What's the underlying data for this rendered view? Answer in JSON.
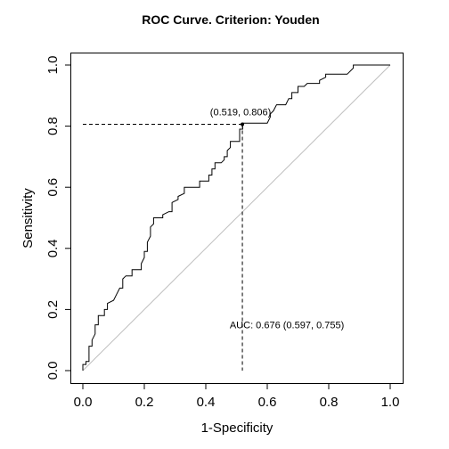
{
  "chart_data": {
    "type": "line",
    "title": "ROC Curve. Criterion: Youden",
    "xlabel": "1-Specificity",
    "ylabel": "Sensitivity",
    "xlim": [
      0,
      1
    ],
    "ylim": [
      0,
      1
    ],
    "x_ticks": [
      "0.0",
      "0.2",
      "0.4",
      "0.6",
      "0.8",
      "1.0"
    ],
    "y_ticks": [
      "0.0",
      "0.2",
      "0.4",
      "0.6",
      "0.8",
      "1.0"
    ],
    "grid": false,
    "legend": "none",
    "colors": {
      "curve": "#000000",
      "diagonal": "#bebebe",
      "reference_lines": "#000000",
      "box": "#000000"
    },
    "series": [
      {
        "values": [
          [
            0.0,
            0.0
          ],
          [
            0.0,
            0.02
          ],
          [
            0.01,
            0.02
          ],
          [
            0.01,
            0.03
          ],
          [
            0.02,
            0.03
          ],
          [
            0.02,
            0.08
          ],
          [
            0.03,
            0.08
          ],
          [
            0.03,
            0.1
          ],
          [
            0.04,
            0.12
          ],
          [
            0.04,
            0.15
          ],
          [
            0.05,
            0.15
          ],
          [
            0.05,
            0.18
          ],
          [
            0.07,
            0.18
          ],
          [
            0.07,
            0.2
          ],
          [
            0.08,
            0.2
          ],
          [
            0.08,
            0.22
          ],
          [
            0.1,
            0.23
          ],
          [
            0.11,
            0.25
          ],
          [
            0.12,
            0.27
          ],
          [
            0.13,
            0.27
          ],
          [
            0.13,
            0.3
          ],
          [
            0.14,
            0.31
          ],
          [
            0.16,
            0.31
          ],
          [
            0.16,
            0.33
          ],
          [
            0.19,
            0.33
          ],
          [
            0.19,
            0.35
          ],
          [
            0.2,
            0.37
          ],
          [
            0.2,
            0.39
          ],
          [
            0.21,
            0.39
          ],
          [
            0.21,
            0.42
          ],
          [
            0.22,
            0.44
          ],
          [
            0.22,
            0.47
          ],
          [
            0.23,
            0.48
          ],
          [
            0.23,
            0.5
          ],
          [
            0.26,
            0.5
          ],
          [
            0.26,
            0.51
          ],
          [
            0.28,
            0.52
          ],
          [
            0.29,
            0.52
          ],
          [
            0.29,
            0.55
          ],
          [
            0.31,
            0.56
          ],
          [
            0.31,
            0.57
          ],
          [
            0.33,
            0.58
          ],
          [
            0.33,
            0.6
          ],
          [
            0.38,
            0.6
          ],
          [
            0.38,
            0.62
          ],
          [
            0.41,
            0.62
          ],
          [
            0.41,
            0.64
          ],
          [
            0.42,
            0.64
          ],
          [
            0.42,
            0.66
          ],
          [
            0.43,
            0.66
          ],
          [
            0.43,
            0.68
          ],
          [
            0.45,
            0.68
          ],
          [
            0.46,
            0.69
          ],
          [
            0.46,
            0.7
          ],
          [
            0.47,
            0.7
          ],
          [
            0.47,
            0.72
          ],
          [
            0.48,
            0.73
          ],
          [
            0.48,
            0.75
          ],
          [
            0.51,
            0.75
          ],
          [
            0.51,
            0.79
          ],
          [
            0.52,
            0.79
          ],
          [
            0.52,
            0.81
          ],
          [
            0.6,
            0.81
          ],
          [
            0.61,
            0.83
          ],
          [
            0.61,
            0.84
          ],
          [
            0.62,
            0.85
          ],
          [
            0.63,
            0.87
          ],
          [
            0.66,
            0.87
          ],
          [
            0.67,
            0.89
          ],
          [
            0.68,
            0.89
          ],
          [
            0.68,
            0.91
          ],
          [
            0.7,
            0.91
          ],
          [
            0.7,
            0.93
          ],
          [
            0.72,
            0.93
          ],
          [
            0.73,
            0.94
          ],
          [
            0.77,
            0.94
          ],
          [
            0.77,
            0.95
          ],
          [
            0.79,
            0.96
          ],
          [
            0.79,
            0.97
          ],
          [
            0.86,
            0.97
          ],
          [
            0.88,
            0.99
          ],
          [
            0.88,
            1.0
          ],
          [
            1.0,
            1.0
          ]
        ]
      }
    ],
    "diagonal": [
      [
        0,
        0
      ],
      [
        1,
        1
      ]
    ],
    "youden_point": {
      "x": 0.519,
      "y": 0.806,
      "label": "(0.519, 0.806)"
    },
    "auc_annotation": {
      "label": "AUC: 0.676 (0.597, 0.755)",
      "x": 0.519,
      "y": 0.15
    }
  }
}
